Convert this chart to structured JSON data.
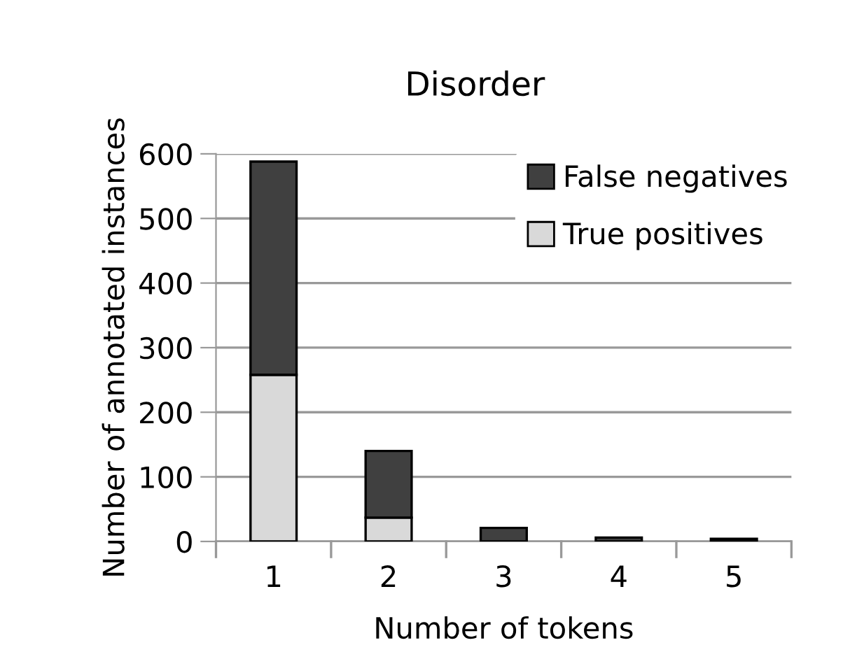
{
  "chart_data": {
    "type": "bar",
    "title": "Disorder",
    "xlabel": "Number of tokens",
    "ylabel": "Number of annotated instances",
    "categories": [
      "1",
      "2",
      "3",
      "4",
      "5"
    ],
    "stacked": true,
    "series": [
      {
        "name": "True positives",
        "color": "#d9d9d9",
        "values": [
          258,
          37,
          0,
          0,
          0
        ]
      },
      {
        "name": "False negatives",
        "color": "#404040",
        "values": [
          330,
          103,
          21,
          6,
          4
        ]
      }
    ],
    "ylim": [
      0,
      600
    ],
    "yticks": [
      0,
      100,
      200,
      300,
      400,
      500,
      600
    ],
    "grid": "y",
    "legend": "top right"
  }
}
